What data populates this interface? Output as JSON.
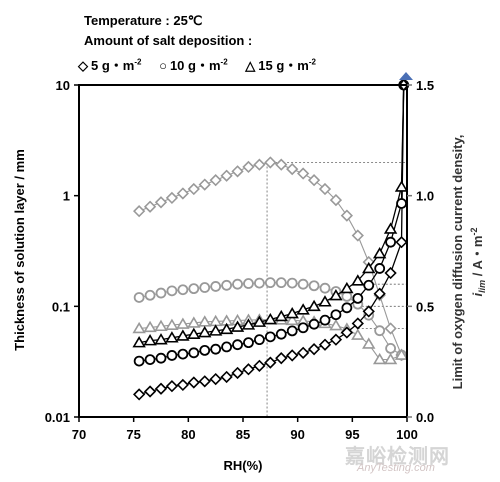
{
  "header": {
    "line1": "Temperature : 25℃",
    "line2": "Amount of salt deposition :"
  },
  "legend": {
    "items": [
      {
        "symbol": "diamond",
        "label": "5 g・m",
        "sup": "-2"
      },
      {
        "symbol": "circle",
        "label": "10 g・m",
        "sup": "-2"
      },
      {
        "symbol": "triangle",
        "label": "15 g・m",
        "sup": "-2"
      }
    ]
  },
  "watermark": {
    "text_cn": "嘉峪检测网",
    "text_en": "AnyTesting.com"
  },
  "colors": {
    "thickness": "#000000",
    "current": "#999999",
    "marker_top": "#4a6fb5"
  },
  "chart_data": {
    "type": "scatter",
    "xlabel": "RH(%)",
    "ylabel_left": "Thickness of solution layer / mm",
    "ylabel_right": "Limit of oxygen diffusion current density, i_lim / A・m-2",
    "ylabel_right_line1": "Limit of oxygen diffusion current density,",
    "ylabel_right_line2": "i",
    "ylabel_right_sub": "lim",
    "ylabel_right_units": " / A・m",
    "ylabel_right_units_sup": "-2",
    "xlim": [
      70,
      100
    ],
    "xticks": [
      "70",
      "75",
      "80",
      "85",
      "90",
      "95",
      "100"
    ],
    "ylim_left": [
      0.01,
      10
    ],
    "yscale_left": "log",
    "yticks_left": [
      "0.01",
      "0.1",
      "1",
      "10"
    ],
    "ylim_right": [
      0,
      1.5
    ],
    "yticks_right": [
      "0.0",
      "0.5",
      "1.0",
      "1.5"
    ],
    "guide_lines": {
      "x": 87.2,
      "right_values": [
        1.15,
        0.6,
        0.5,
        0.4
      ]
    },
    "series": [
      {
        "name": "5 g・m-2",
        "axis": "left",
        "marker": "diamond",
        "color": "#000000",
        "line": true,
        "x": [
          75.5,
          76.5,
          77.5,
          78.5,
          79.5,
          80.5,
          81.5,
          82.5,
          83.5,
          84.5,
          85.5,
          86.5,
          87.5,
          88.5,
          89.5,
          90.5,
          91.5,
          92.5,
          93.5,
          94.5,
          95.5,
          96.5,
          97.5,
          98.5,
          99.5
        ],
        "y": [
          0.016,
          0.017,
          0.018,
          0.019,
          0.0195,
          0.0205,
          0.021,
          0.022,
          0.023,
          0.025,
          0.027,
          0.029,
          0.031,
          0.034,
          0.036,
          0.038,
          0.041,
          0.045,
          0.05,
          0.058,
          0.07,
          0.09,
          0.13,
          0.2,
          0.38
        ]
      },
      {
        "name": "10 g・m-2",
        "axis": "left",
        "marker": "circle",
        "color": "#000000",
        "line": true,
        "x": [
          75.5,
          76.5,
          77.5,
          78.5,
          79.5,
          80.5,
          81.5,
          82.5,
          83.5,
          84.5,
          85.5,
          86.5,
          87.5,
          88.5,
          89.5,
          90.5,
          91.5,
          92.5,
          93.5,
          94.5,
          95.5,
          96.5,
          97.5,
          98.5,
          99.5
        ],
        "y": [
          0.032,
          0.033,
          0.034,
          0.036,
          0.037,
          0.038,
          0.04,
          0.041,
          0.043,
          0.045,
          0.047,
          0.05,
          0.053,
          0.056,
          0.06,
          0.064,
          0.069,
          0.075,
          0.084,
          0.097,
          0.118,
          0.155,
          0.22,
          0.38,
          0.85
        ]
      },
      {
        "name": "15 g・m-2",
        "axis": "left",
        "marker": "triangle",
        "color": "#000000",
        "line": true,
        "x": [
          75.5,
          76.5,
          77.5,
          78.5,
          79.5,
          80.5,
          81.5,
          82.5,
          83.5,
          84.5,
          85.5,
          86.5,
          87.5,
          88.5,
          89.5,
          90.5,
          91.5,
          92.5,
          93.5,
          94.5,
          95.5,
          96.5,
          97.5,
          98.5,
          99.5
        ],
        "y": [
          0.047,
          0.049,
          0.05,
          0.052,
          0.054,
          0.056,
          0.058,
          0.06,
          0.062,
          0.065,
          0.068,
          0.072,
          0.076,
          0.081,
          0.086,
          0.093,
          0.1,
          0.11,
          0.125,
          0.145,
          0.17,
          0.22,
          0.3,
          0.5,
          1.2
        ]
      },
      {
        "name": "5 g・m-2 (i_lim)",
        "axis": "right",
        "marker": "diamond",
        "color": "#999999",
        "line": true,
        "x": [
          75.5,
          76.5,
          77.5,
          78.5,
          79.5,
          80.5,
          81.5,
          82.5,
          83.5,
          84.5,
          85.5,
          86.5,
          87.5,
          88.5,
          89.5,
          90.5,
          91.5,
          92.5,
          93.5,
          94.5,
          95.5,
          96.5,
          97.5,
          98.5,
          99.5
        ],
        "y": [
          0.93,
          0.95,
          0.97,
          0.99,
          1.01,
          1.03,
          1.05,
          1.07,
          1.09,
          1.11,
          1.13,
          1.14,
          1.15,
          1.14,
          1.12,
          1.1,
          1.07,
          1.03,
          0.98,
          0.91,
          0.82,
          0.7,
          0.55,
          0.4,
          0.28
        ]
      },
      {
        "name": "10 g・m-2 (i_lim)",
        "axis": "right",
        "marker": "circle",
        "color": "#999999",
        "line": true,
        "x": [
          75.5,
          76.5,
          77.5,
          78.5,
          79.5,
          80.5,
          81.5,
          82.5,
          83.5,
          84.5,
          85.5,
          86.5,
          87.5,
          88.5,
          89.5,
          90.5,
          91.5,
          92.5,
          93.5,
          94.5,
          95.5,
          96.5,
          97.5,
          98.5,
          99.5
        ],
        "y": [
          0.54,
          0.55,
          0.56,
          0.57,
          0.575,
          0.58,
          0.585,
          0.59,
          0.595,
          0.6,
          0.603,
          0.605,
          0.607,
          0.607,
          0.605,
          0.6,
          0.593,
          0.582,
          0.567,
          0.545,
          0.51,
          0.46,
          0.39,
          0.31,
          0.28
        ]
      },
      {
        "name": "15 g・m-2 (i_lim)",
        "axis": "right",
        "marker": "triangle",
        "color": "#999999",
        "line": true,
        "x": [
          75.5,
          76.5,
          77.5,
          78.5,
          79.5,
          80.5,
          81.5,
          82.5,
          83.5,
          84.5,
          85.5,
          86.5,
          87.5,
          88.5,
          89.5,
          90.5,
          91.5,
          92.5,
          93.5,
          94.5,
          95.5,
          96.5,
          97.5,
          98.5,
          99.5
        ],
        "y": [
          0.4,
          0.405,
          0.41,
          0.415,
          0.42,
          0.425,
          0.43,
          0.432,
          0.434,
          0.436,
          0.438,
          0.439,
          0.44,
          0.439,
          0.437,
          0.434,
          0.43,
          0.423,
          0.413,
          0.398,
          0.37,
          0.33,
          0.26,
          0.26,
          0.28
        ]
      }
    ]
  }
}
